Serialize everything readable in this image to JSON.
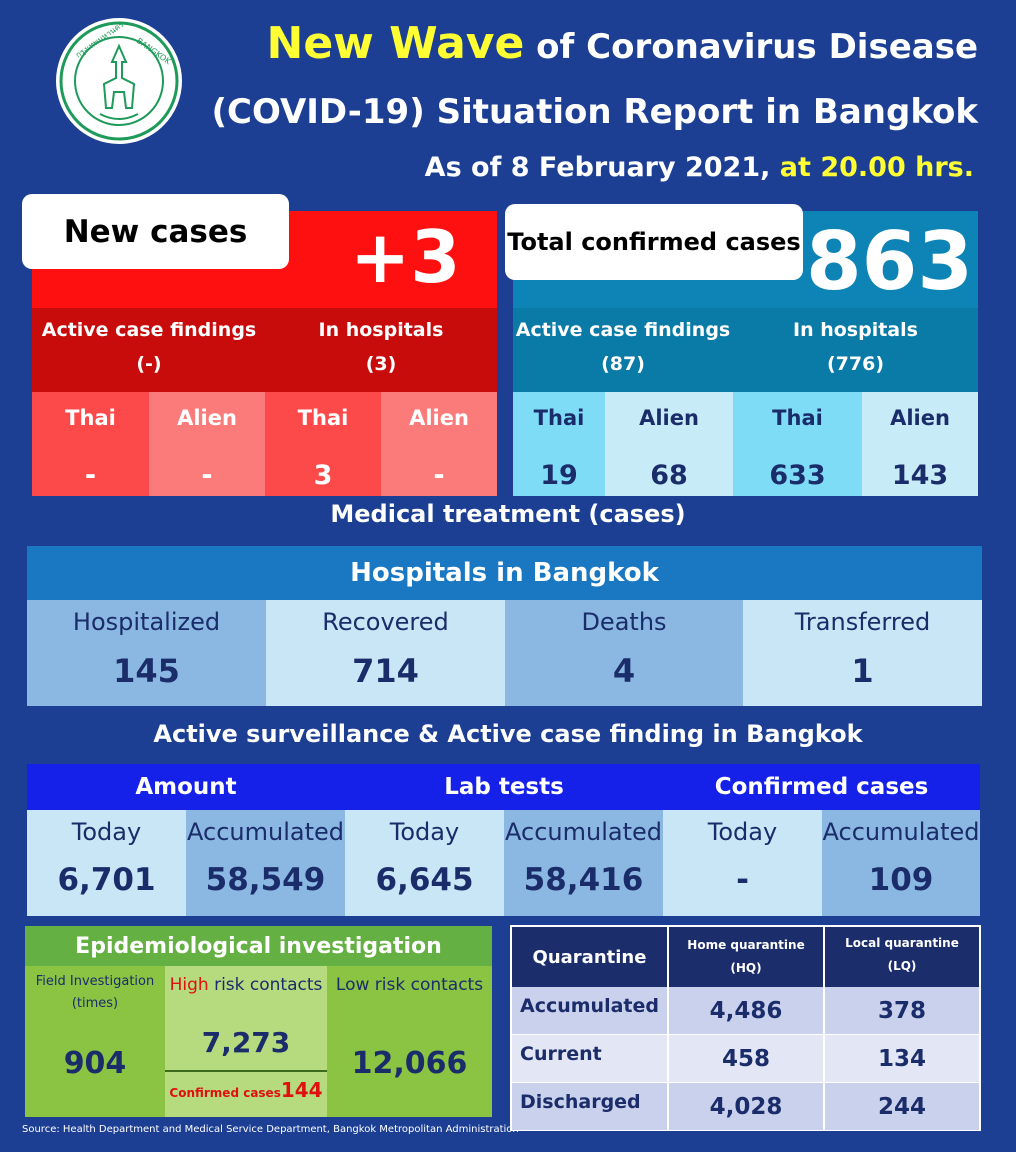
{
  "header": {
    "title_highlight": "New Wave",
    "title_rest": " of Coronavirus Disease",
    "title_line2": "(COVID-19) Situation Report in Bangkok",
    "date_text": "As of 8 February 2021, ",
    "time_text": "at 20.00 hrs.",
    "seal": {
      "text_left": "กรุงเทพมหานคร",
      "text_right": "BANGKOK"
    }
  },
  "new_cases": {
    "label": "New cases",
    "value": "+3",
    "active_label": "Active case findings",
    "active_value": "(-)",
    "hospital_label": "In hospitals",
    "hospital_value": "(3)",
    "cells": [
      {
        "label": "Thai",
        "value": "-"
      },
      {
        "label": "Alien",
        "value": "-"
      },
      {
        "label": "Thai",
        "value": "3"
      },
      {
        "label": "Alien",
        "value": "-"
      }
    ]
  },
  "total_cases": {
    "label": "Total confirmed cases",
    "value": "863",
    "active_label": "Active case findings",
    "active_value": "(87)",
    "hospital_label": "In hospitals",
    "hospital_value": "(776)",
    "cells": [
      {
        "label": "Thai",
        "value": "19"
      },
      {
        "label": "Alien",
        "value": "68"
      },
      {
        "label": "Thai",
        "value": "633"
      },
      {
        "label": "Alien",
        "value": "143"
      }
    ]
  },
  "medical": {
    "title": "Medical treatment (cases)",
    "header": "Hospitals in Bangkok",
    "cells": [
      {
        "label": "Hospitalized",
        "value": "145"
      },
      {
        "label": "Recovered",
        "value": "714"
      },
      {
        "label": "Deaths",
        "value": "4"
      },
      {
        "label": "Transferred",
        "value": "1"
      }
    ]
  },
  "surveillance": {
    "title": "Active surveillance & Active case finding in Bangkok",
    "headers": [
      "Amount",
      "Lab tests",
      "Confirmed cases"
    ],
    "cells": [
      {
        "label": "Today",
        "value": "6,701"
      },
      {
        "label": "Accumulated",
        "value": "58,549"
      },
      {
        "label": "Today",
        "value": "6,645"
      },
      {
        "label": "Accumulated",
        "value": "58,416"
      },
      {
        "label": "Today",
        "value": "-"
      },
      {
        "label": "Accumulated",
        "value": "109"
      }
    ]
  },
  "epidemiological": {
    "title": "Epidemiological investigation",
    "field_label_1": "Field Investigation",
    "field_label_2": "(times)",
    "field_value": "904",
    "high_risk_word": "High",
    "high_risk_rest": " risk contacts",
    "high_risk_value": "7,273",
    "confirmed_label": "Confirmed cases",
    "confirmed_value": "144",
    "low_risk_label": "Low risk contacts",
    "low_risk_value": "12,066"
  },
  "quarantine": {
    "header": "Quarantine",
    "hq_label": "Home quarantine",
    "hq_abbr": "(HQ)",
    "lq_label": "Local quarantine",
    "lq_abbr": "(LQ)",
    "rows": [
      {
        "label": "Accumulated",
        "hq": "4,486",
        "lq": "378"
      },
      {
        "label": "Current",
        "hq": "458",
        "lq": "134"
      },
      {
        "label": "Discharged",
        "hq": "4,028",
        "lq": "244"
      }
    ]
  },
  "source": "Source: Health Department and Medical Service Department, Bangkok Metropolitan Administration",
  "colors": {
    "background": "#1c3f94",
    "new_cases_red": "#ff1010",
    "total_cases_teal": "#0d84b5",
    "highlight_yellow": "#ffff33",
    "epi_green": "#8bc443"
  }
}
